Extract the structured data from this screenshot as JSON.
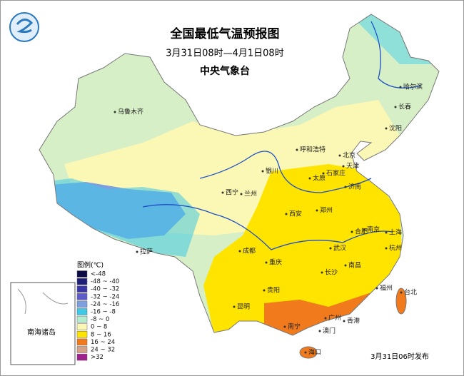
{
  "header": {
    "title": "全国最低气温预报图",
    "period": "3月31日08时—4月1日08时",
    "issuer": "中央气象台"
  },
  "legend": {
    "title": "图例(℃)",
    "items": [
      {
        "label": "<-48",
        "color": "#0b0b45"
      },
      {
        "label": "-48 ~ -40",
        "color": "#1e1e78"
      },
      {
        "label": "-40 ~ -32",
        "color": "#3a36a8"
      },
      {
        "label": "-32 ~ -24",
        "color": "#5e5ccc"
      },
      {
        "label": "-24 ~ -16",
        "color": "#7d9fe0"
      },
      {
        "label": "-16 ~ -8",
        "color": "#3fc9e6"
      },
      {
        "label": "-8 ~ 0",
        "color": "#b4ecd0"
      },
      {
        "label": "0 ~ 8",
        "color": "#fbf7b4"
      },
      {
        "label": "8 ~ 16",
        "color": "#ffe400"
      },
      {
        "label": "16 ~ 24",
        "color": "#f07a1c"
      },
      {
        "label": "24 ~ 32",
        "color": "#d4a28a"
      },
      {
        "label": ">32",
        "color": "#a0208c"
      }
    ]
  },
  "cities": [
    "乌鲁木齐",
    "哈尔滨",
    "长春",
    "沈阳",
    "呼和浩特",
    "北京",
    "天津",
    "银川",
    "太原",
    "石家庄",
    "济南",
    "西宁",
    "兰州",
    "西安",
    "郑州",
    "合肥",
    "南京",
    "上海",
    "杭州",
    "成都",
    "武汉",
    "重庆",
    "拉萨",
    "长沙",
    "南昌",
    "贵阳",
    "福州",
    "台北",
    "昆明",
    "南宁",
    "广州",
    "香港",
    "澳门",
    "海口"
  ],
  "inset": {
    "label": "南海诸岛"
  },
  "footer": "3月31日06时发布"
}
